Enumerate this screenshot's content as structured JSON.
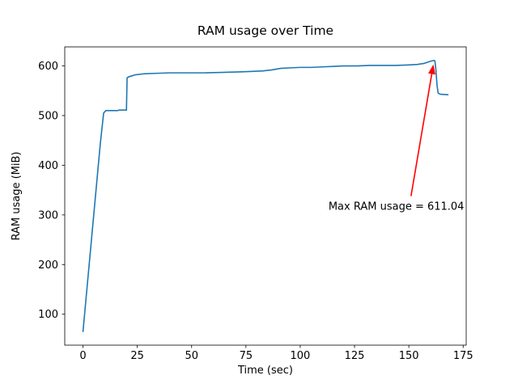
{
  "figure": {
    "title": "RAM usage over Time",
    "xlabel": "Time (sec)",
    "ylabel": "RAM usage (MiB)"
  },
  "chart_data": {
    "type": "line",
    "title": "RAM usage over Time",
    "xlabel": "Time (sec)",
    "ylabel": "RAM usage (MiB)",
    "xlim": [
      -8.4,
      176.4
    ],
    "ylim": [
      37.7,
      638.3
    ],
    "xticks": [
      0,
      25,
      50,
      75,
      100,
      125,
      150,
      175
    ],
    "yticks": [
      100,
      200,
      300,
      400,
      500,
      600
    ],
    "grid": false,
    "legend_position": "none",
    "series": [
      {
        "name": "RAM usage (MiB)",
        "color": "#1f77b4",
        "x": [
          0,
          2,
          4,
          6,
          8,
          9.5,
          10.5,
          16,
          16.5,
          20,
          20.3,
          21,
          24,
          28,
          33,
          40,
          48,
          56,
          64,
          72,
          78,
          83,
          87,
          91,
          95,
          100,
          105,
          110,
          115,
          120,
          126,
          132,
          138,
          144,
          150,
          154,
          157,
          159,
          160.5,
          161.5,
          162,
          162.5,
          163,
          163.5,
          164.5,
          168
        ],
        "y": [
          65,
          160,
          255,
          350,
          445,
          505,
          510,
          510,
          511,
          511,
          576,
          578,
          582,
          584,
          585,
          586,
          586,
          586,
          587,
          588,
          589,
          590,
          592,
          595,
          596,
          597,
          597,
          598,
          599,
          600,
          600,
          601,
          601,
          601,
          602,
          603,
          605,
          608,
          610,
          611,
          610,
          590,
          560,
          545,
          543,
          542
        ]
      }
    ],
    "annotation": {
      "text": "Max RAM usage = 611.04",
      "max_value": 611.04,
      "color": "#ff0000",
      "text_xy": [
        113,
        310
      ],
      "arrow_tail_xy": [
        151,
        338
      ],
      "arrow_tip_xy": [
        161.3,
        603
      ]
    }
  }
}
